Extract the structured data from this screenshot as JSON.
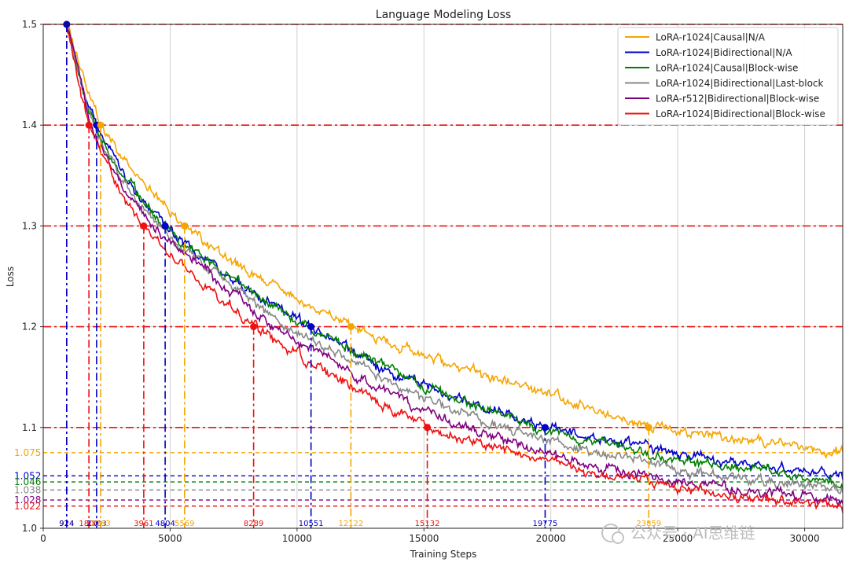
{
  "chart_data": {
    "type": "line",
    "title": "Language Modeling Loss",
    "xlabel": "Training Steps",
    "ylabel": "Loss",
    "xlim": [
      0,
      31500
    ],
    "ylim": [
      1.0,
      1.5
    ],
    "x_ticks": [
      0,
      5000,
      10000,
      15000,
      20000,
      25000,
      30000
    ],
    "y_ticks": [
      1.0,
      1.1,
      1.2,
      1.3,
      1.4,
      1.5
    ],
    "grid": true,
    "legend_position": "top-right",
    "loss_thresholds": [
      1.5,
      1.4,
      1.3,
      1.2,
      1.1
    ],
    "series": [
      {
        "name": "LoRA-r1024|Causal|N/A",
        "color": "#f5a500",
        "points": [
          [
            924,
            1.5
          ],
          [
            1700,
            1.44
          ],
          [
            2263,
            1.4
          ],
          [
            3500,
            1.355
          ],
          [
            5569,
            1.3
          ],
          [
            8000,
            1.255
          ],
          [
            12122,
            1.2
          ],
          [
            15000,
            1.172
          ],
          [
            20000,
            1.132
          ],
          [
            23859,
            1.1
          ],
          [
            28000,
            1.087
          ],
          [
            31500,
            1.075
          ]
        ],
        "steps_at_threshold": [
          924,
          2263,
          5569,
          12122,
          23859
        ],
        "final_loss": "1.075"
      },
      {
        "name": "LoRA-r1024|Bidirectional|N/A",
        "color": "#0000cc",
        "points": [
          [
            924,
            1.5
          ],
          [
            1500,
            1.445
          ],
          [
            2103,
            1.4
          ],
          [
            3200,
            1.35
          ],
          [
            4804,
            1.3
          ],
          [
            7500,
            1.245
          ],
          [
            10551,
            1.2
          ],
          [
            14000,
            1.15
          ],
          [
            19775,
            1.1
          ],
          [
            24000,
            1.077
          ],
          [
            28000,
            1.062
          ],
          [
            31500,
            1.052
          ]
        ],
        "steps_at_threshold": [
          924,
          2103,
          4804,
          10551,
          19775
        ],
        "final_loss": "1.052"
      },
      {
        "name": "LoRA-r1024|Causal|Block-wise",
        "color": "#008000",
        "points": [
          [
            924,
            1.5
          ],
          [
            1500,
            1.44
          ],
          [
            2000,
            1.4
          ],
          [
            3000,
            1.355
          ],
          [
            4700,
            1.3
          ],
          [
            7000,
            1.255
          ],
          [
            10000,
            1.205
          ],
          [
            15000,
            1.14
          ],
          [
            20000,
            1.095
          ],
          [
            25000,
            1.068
          ],
          [
            28000,
            1.058
          ],
          [
            31500,
            1.046
          ]
        ],
        "final_loss": "1.046"
      },
      {
        "name": "LoRA-r1024|Bidirectional|Last-block",
        "color": "#888888",
        "points": [
          [
            924,
            1.5
          ],
          [
            1500,
            1.44
          ],
          [
            2000,
            1.4
          ],
          [
            3000,
            1.35
          ],
          [
            4500,
            1.3
          ],
          [
            7000,
            1.25
          ],
          [
            9500,
            1.2
          ],
          [
            15000,
            1.128
          ],
          [
            20000,
            1.085
          ],
          [
            25000,
            1.058
          ],
          [
            28000,
            1.048
          ],
          [
            31500,
            1.038
          ]
        ],
        "final_loss": "1.038"
      },
      {
        "name": "LoRA-r512|Bidirectional|Block-wise",
        "color": "#800080",
        "points": [
          [
            924,
            1.5
          ],
          [
            1500,
            1.44
          ],
          [
            1900,
            1.4
          ],
          [
            3000,
            1.345
          ],
          [
            4300,
            1.3
          ],
          [
            6500,
            1.255
          ],
          [
            9000,
            1.2
          ],
          [
            15000,
            1.115
          ],
          [
            20000,
            1.072
          ],
          [
            25000,
            1.045
          ],
          [
            28000,
            1.037
          ],
          [
            31500,
            1.028
          ]
        ],
        "final_loss": "1.028"
      },
      {
        "name": "LoRA-r1024|Bidirectional|Block-wise",
        "color": "#ee1111",
        "points": [
          [
            924,
            1.5
          ],
          [
            1400,
            1.44
          ],
          [
            1800,
            1.4
          ],
          [
            2800,
            1.345
          ],
          [
            3961,
            1.3
          ],
          [
            6000,
            1.25
          ],
          [
            8289,
            1.2
          ],
          [
            11500,
            1.15
          ],
          [
            15132,
            1.1
          ],
          [
            20000,
            1.065
          ],
          [
            25000,
            1.038
          ],
          [
            28000,
            1.03
          ],
          [
            31500,
            1.022
          ]
        ],
        "steps_at_threshold": [
          924,
          1800,
          3961,
          8289,
          15132
        ],
        "final_loss": "1.022"
      }
    ],
    "step_markers": [
      {
        "label": "924",
        "x": 924,
        "series": 5
      },
      {
        "label": "924",
        "x": 924,
        "series": 1
      },
      {
        "label": "1800",
        "x": 1800,
        "series": 5
      },
      {
        "label": "2103",
        "x": 2103,
        "series": 1
      },
      {
        "label": "2263",
        "x": 2263,
        "series": 0
      },
      {
        "label": "3961",
        "x": 3961,
        "series": 5
      },
      {
        "label": "4804",
        "x": 4804,
        "series": 1
      },
      {
        "label": "5569",
        "x": 5569,
        "series": 0
      },
      {
        "label": "8289",
        "x": 8289,
        "series": 5
      },
      {
        "label": "10551",
        "x": 10551,
        "series": 1
      },
      {
        "label": "12122",
        "x": 12122,
        "series": 0
      },
      {
        "label": "15132",
        "x": 15132,
        "series": 5
      },
      {
        "label": "19775",
        "x": 19775,
        "series": 1
      },
      {
        "label": "23859",
        "x": 23859,
        "series": 0
      }
    ]
  },
  "watermark": "公众号 · AI思维链"
}
